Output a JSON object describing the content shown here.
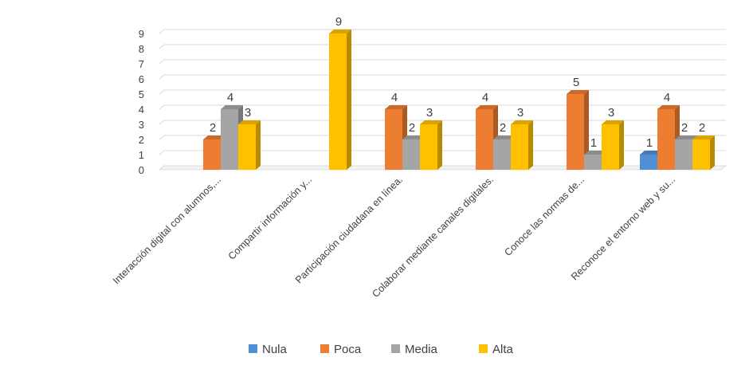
{
  "chart_data": {
    "type": "bar",
    "title": "",
    "xlabel": "",
    "ylabel": "",
    "ylim": [
      0,
      9
    ],
    "yticks": [
      0,
      1,
      2,
      3,
      4,
      5,
      6,
      7,
      8,
      9
    ],
    "grid": true,
    "legend_position": "bottom",
    "categories": [
      "Interacción digital con alumnos,...",
      "Compartir información y...",
      "Participación ciudadana en línea.",
      "Colaborar mediante canales digitales.",
      "Conoce las normas de...",
      "Reconoce el entorno web y su..."
    ],
    "series": [
      {
        "name": "Nula",
        "color": "#4f8fd6",
        "values": [
          null,
          null,
          null,
          null,
          null,
          1
        ]
      },
      {
        "name": "Poca",
        "color": "#ed7d31",
        "values": [
          2,
          null,
          4,
          4,
          5,
          4
        ]
      },
      {
        "name": "Media",
        "color": "#a5a5a5",
        "values": [
          4,
          null,
          2,
          2,
          1,
          2
        ]
      },
      {
        "name": "Alta",
        "color": "#ffc000",
        "values": [
          3,
          9,
          3,
          3,
          3,
          2
        ]
      }
    ]
  }
}
